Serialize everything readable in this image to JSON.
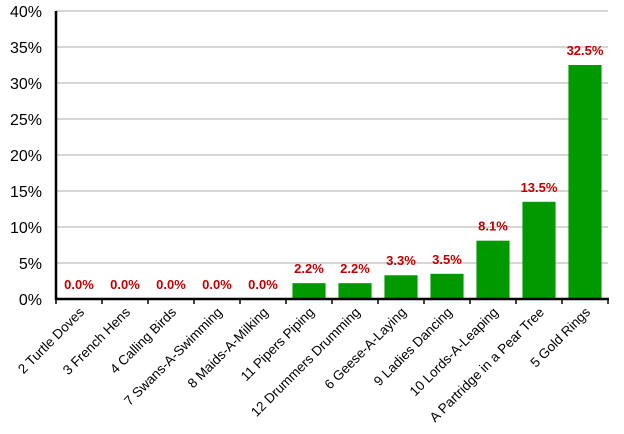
{
  "chart_data": {
    "type": "bar",
    "title": "",
    "xlabel": "",
    "ylabel": "",
    "categories": [
      "2 Turtle Doves",
      "3 French Hens",
      "4 Calling Birds",
      "7 Swans-A-Swimming",
      "8 Maids-A-Milking",
      "11 Pipers Piping",
      "12 Drummers Drumming",
      "6 Geese-A-Laying",
      "9 Ladies Dancing",
      "10 Lords-A-Leaping",
      "A Partridge in a Pear Tree",
      "5 Gold Rings"
    ],
    "values": [
      0.0,
      0.0,
      0.0,
      0.0,
      0.0,
      2.2,
      2.2,
      3.3,
      3.5,
      8.1,
      13.5,
      32.5
    ],
    "data_labels": [
      "0.0%",
      "0.0%",
      "0.0%",
      "0.0%",
      "0.0%",
      "2.2%",
      "2.2%",
      "3.3%",
      "3.5%",
      "8.1%",
      "13.5%",
      "32.5%"
    ],
    "ylim": [
      0,
      40
    ],
    "yticks": [
      "0%",
      "5%",
      "10%",
      "15%",
      "20%",
      "25%",
      "30%",
      "35%",
      "40%"
    ],
    "grid": true,
    "legend": null,
    "colors": {
      "bar": "#009900",
      "label": "#c00000",
      "grid": "#c8c8c8",
      "axis": "#000000"
    }
  }
}
